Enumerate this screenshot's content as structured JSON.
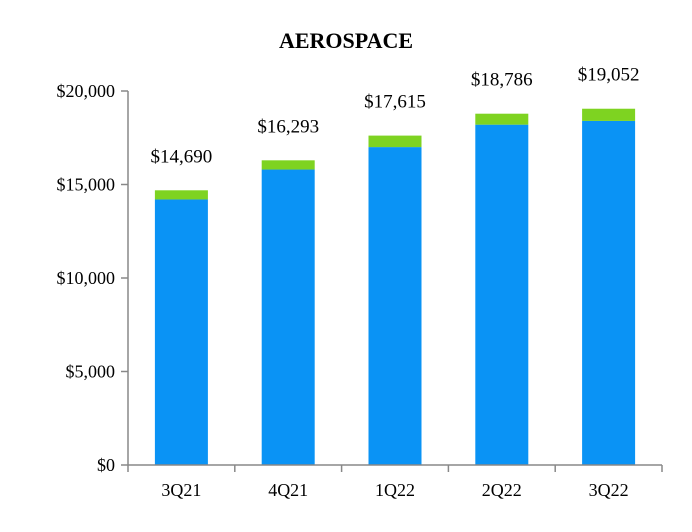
{
  "chart_data": {
    "type": "bar",
    "title": "AEROSPACE",
    "categories": [
      "3Q21",
      "4Q21",
      "1Q22",
      "2Q22",
      "3Q22"
    ],
    "stacked": true,
    "series": [
      {
        "values": [
          14200,
          15800,
          17000,
          18200,
          18400
        ],
        "color": "#0a93f5"
      },
      {
        "values": [
          490,
          493,
          615,
          586,
          652
        ],
        "color": "#7ed321"
      }
    ],
    "totals": [
      14690,
      16293,
      17615,
      18786,
      19052
    ],
    "total_labels": [
      "$14,690",
      "$16,293",
      "$17,615",
      "$18,786",
      "$19,052"
    ],
    "y_ticks": [
      0,
      5000,
      10000,
      15000,
      20000
    ],
    "y_tick_labels": [
      "$0",
      "$5,000",
      "$10,000",
      "$15,000",
      "$20,000"
    ],
    "ylim": [
      0,
      20000
    ],
    "grid": false,
    "legend": "none"
  }
}
